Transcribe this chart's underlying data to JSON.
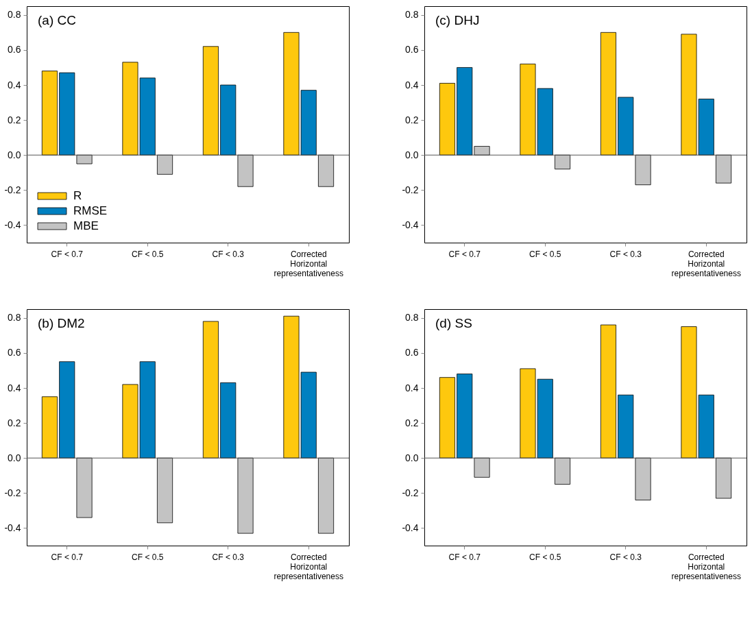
{
  "chart_data": [
    {
      "type": "bar",
      "title": "(a) CC",
      "categories": [
        "CF < 0.7",
        "CF < 0.5",
        "CF < 0.3",
        "Corrected\nHorizontal\nrepresentativeness"
      ],
      "ylim": [
        -0.5,
        0.85
      ],
      "yticks": [
        {
          "value": -0.4,
          "label": "-0.4"
        },
        {
          "value": -0.2,
          "label": "-0.2"
        },
        {
          "value": 0,
          "label": "0.0"
        },
        0.2,
        0.4,
        0.6,
        0.8
      ],
      "grid": false,
      "legend": "bottom left",
      "ref_lines": [
        {
          "axis": "y",
          "value": 0,
          "label": null
        }
      ],
      "series": [
        {
          "name": "R",
          "color": "#fec80e",
          "values": [
            0.48,
            0.53,
            0.62,
            0.7
          ]
        },
        {
          "name": "RMSE",
          "color": "#0080c0",
          "values": [
            0.47,
            0.44,
            0.4,
            0.37
          ]
        },
        {
          "name": "MBE",
          "color": "#c3c3c3",
          "values": [
            -0.05,
            -0.11,
            -0.18,
            -0.18
          ]
        }
      ]
    },
    {
      "type": "bar",
      "title": "(c) DHJ",
      "categories": [
        "CF < 0.7",
        "CF < 0.5",
        "CF < 0.3",
        "Corrected\nHorizontal\nrepresentativeness"
      ],
      "ylim": [
        -0.5,
        0.85
      ],
      "yticks": [
        {
          "value": -0.4,
          "label": "-0.4"
        },
        {
          "value": -0.2,
          "label": "-0.2"
        },
        {
          "value": 0,
          "label": "0.0"
        },
        0.2,
        0.4,
        0.6,
        0.8
      ],
      "grid": false,
      "legend": false,
      "ref_lines": [
        {
          "axis": "y",
          "value": 0,
          "label": null
        }
      ],
      "series": [
        {
          "color": "#fec80e",
          "values": [
            0.41,
            0.52,
            0.7,
            0.69
          ]
        },
        {
          "color": "#0080c0",
          "values": [
            0.5,
            0.38,
            0.33,
            0.32
          ]
        },
        {
          "color": "#c3c3c3",
          "values": [
            0.05,
            -0.08,
            -0.17,
            -0.16
          ]
        }
      ]
    },
    {
      "type": "bar",
      "title": "(b) DM2",
      "categories": [
        "CF < 0.7",
        "CF < 0.5",
        "CF < 0.3",
        "Corrected\nHorizontal\nrepresentativeness"
      ],
      "ylim": [
        -0.5,
        0.85
      ],
      "yticks": [
        {
          "value": -0.4,
          "label": "-0.4"
        },
        {
          "value": -0.2,
          "label": "-0.2"
        },
        {
          "value": 0,
          "label": "0.0"
        },
        0.2,
        0.4,
        0.6,
        0.8
      ],
      "grid": false,
      "legend": false,
      "ref_lines": [
        {
          "axis": "y",
          "value": 0,
          "label": null
        }
      ],
      "series": [
        {
          "color": "#fec80e",
          "values": [
            0.35,
            0.42,
            0.78,
            0.81
          ]
        },
        {
          "color": "#0080c0",
          "values": [
            0.55,
            0.55,
            0.43,
            0.49
          ]
        },
        {
          "color": "#c3c3c3",
          "values": [
            -0.34,
            -0.37,
            -0.43,
            -0.43
          ]
        }
      ]
    },
    {
      "type": "bar",
      "title": "(d) SS",
      "categories": [
        "CF < 0.7",
        "CF < 0.5",
        "CF < 0.3",
        "Corrected\nHorizontal\nrepresentativeness"
      ],
      "ylim": [
        -0.5,
        0.85
      ],
      "yticks": [
        {
          "value": -0.4,
          "label": "-0.4"
        },
        {
          "value": -0.2,
          "label": "-0.2"
        },
        {
          "value": 0,
          "label": "0.0"
        },
        0.2,
        0.4,
        0.6,
        0.8
      ],
      "grid": false,
      "legend": false,
      "ref_lines": [
        {
          "axis": "y",
          "value": 0,
          "label": null
        }
      ],
      "series": [
        {
          "color": "#fec80e",
          "values": [
            0.46,
            0.51,
            0.76,
            0.75
          ]
        },
        {
          "color": "#0080c0",
          "values": [
            0.48,
            0.45,
            0.36,
            0.36
          ]
        },
        {
          "color": "#c3c3c3",
          "values": [
            -0.11,
            -0.15,
            -0.24,
            -0.23
          ]
        }
      ]
    }
  ]
}
